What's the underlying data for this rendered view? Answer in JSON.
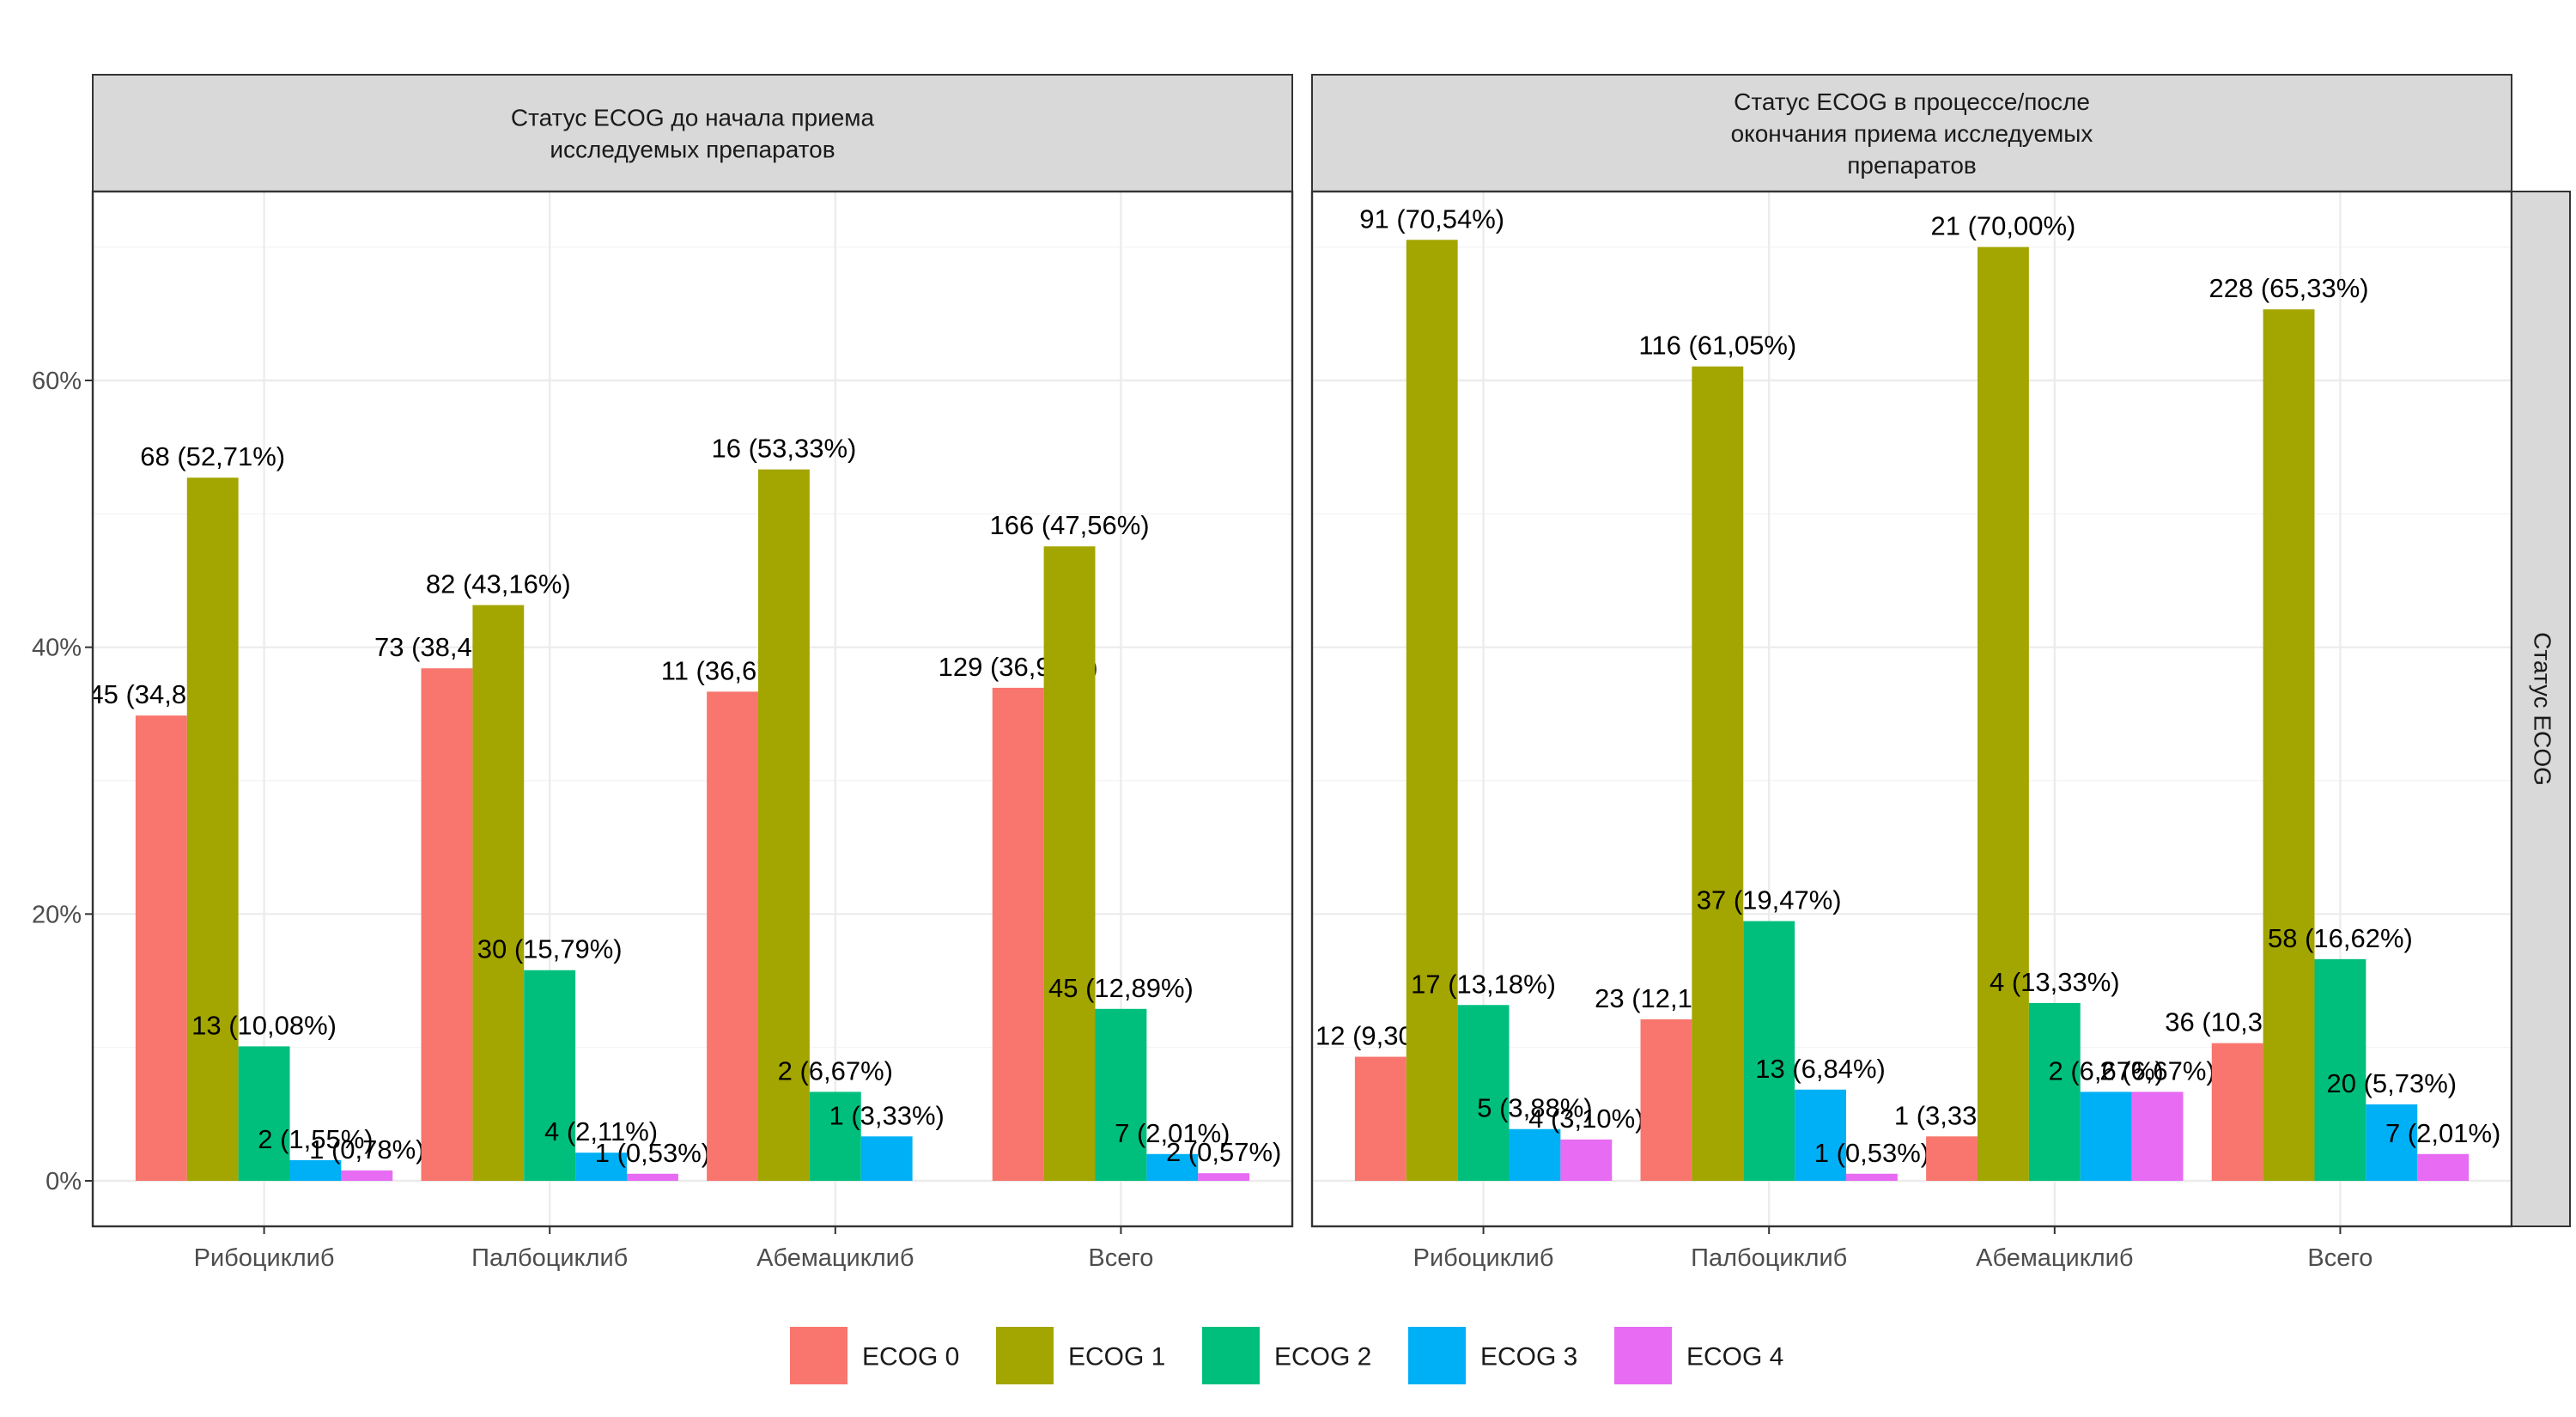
{
  "chart_data": {
    "type": "bar",
    "categories": [
      "Рибоциклиб",
      "Палбоциклиб",
      "Абемациклиб",
      "Всего"
    ],
    "y_ticks": [
      "0%",
      "20%",
      "40%",
      "60%"
    ],
    "ylim": [
      0,
      0.75
    ],
    "grid": true,
    "legend_position": "bottom",
    "row_strip": "Статус ECOG",
    "legend": [
      {
        "name": "ECOG 0",
        "color": "#F8766D"
      },
      {
        "name": "ECOG 1",
        "color": "#A3A500"
      },
      {
        "name": "ECOG 2",
        "color": "#00BF7D"
      },
      {
        "name": "ECOG 3",
        "color": "#00B0F6"
      },
      {
        "name": "ECOG 4",
        "color": "#E76BF3"
      }
    ],
    "panels": [
      {
        "strip": [
          "Статус ECOG до начала приема",
          "исследуемых препаратов"
        ],
        "groups": [
          {
            "category": "Рибоциклиб",
            "bars": [
              {
                "series": "ECOG 0",
                "value": 0.3488,
                "label": "45 (34,88%)"
              },
              {
                "series": "ECOG 1",
                "value": 0.5271,
                "label": "68 (52,71%)"
              },
              {
                "series": "ECOG 2",
                "value": 0.1008,
                "label": "13 (10,08%)"
              },
              {
                "series": "ECOG 3",
                "value": 0.0155,
                "label": "2 (1,55%)"
              },
              {
                "series": "ECOG 4",
                "value": 0.0078,
                "label": "1 (0,78%)"
              }
            ]
          },
          {
            "category": "Палбоциклиб",
            "bars": [
              {
                "series": "ECOG 0",
                "value": 0.3842,
                "label": "73 (38,42%)"
              },
              {
                "series": "ECOG 1",
                "value": 0.4316,
                "label": "82 (43,16%)"
              },
              {
                "series": "ECOG 2",
                "value": 0.1579,
                "label": "30 (15,79%)"
              },
              {
                "series": "ECOG 3",
                "value": 0.0211,
                "label": "4 (2,11%)"
              },
              {
                "series": "ECOG 4",
                "value": 0.0053,
                "label": "1 (0,53%)"
              }
            ]
          },
          {
            "category": "Абемациклиб",
            "bars": [
              {
                "series": "ECOG 0",
                "value": 0.3667,
                "label": "11 (36,67%)"
              },
              {
                "series": "ECOG 1",
                "value": 0.5333,
                "label": "16 (53,33%)"
              },
              {
                "series": "ECOG 2",
                "value": 0.0667,
                "label": "2 (6,67%)"
              },
              {
                "series": "ECOG 3",
                "value": 0.0333,
                "label": "1 (3,33%)"
              }
            ]
          },
          {
            "category": "Всего",
            "bars": [
              {
                "series": "ECOG 0",
                "value": 0.3696,
                "label": "129 (36,96%)"
              },
              {
                "series": "ECOG 1",
                "value": 0.4756,
                "label": "166 (47,56%)"
              },
              {
                "series": "ECOG 2",
                "value": 0.1289,
                "label": "45 (12,89%)"
              },
              {
                "series": "ECOG 3",
                "value": 0.0201,
                "label": "7 (2,01%)"
              },
              {
                "series": "ECOG 4",
                "value": 0.0057,
                "label": "2 (0,57%)"
              }
            ]
          }
        ]
      },
      {
        "strip": [
          "Статус ECOG в процессе/после",
          "окончания приема исследуемых",
          "препаратов"
        ],
        "groups": [
          {
            "category": "Рибоциклиб",
            "bars": [
              {
                "series": "ECOG 0",
                "value": 0.093,
                "label": "12 (9,30%)"
              },
              {
                "series": "ECOG 1",
                "value": 0.7054,
                "label": "91 (70,54%)"
              },
              {
                "series": "ECOG 2",
                "value": 0.1318,
                "label": "17 (13,18%)"
              },
              {
                "series": "ECOG 3",
                "value": 0.0388,
                "label": "5 (3,88%)"
              },
              {
                "series": "ECOG 4",
                "value": 0.031,
                "label": "4 (3,10%)"
              }
            ]
          },
          {
            "category": "Палбоциклиб",
            "bars": [
              {
                "series": "ECOG 0",
                "value": 0.1211,
                "label": "23 (12,11%)"
              },
              {
                "series": "ECOG 1",
                "value": 0.6105,
                "label": "116 (61,05%)"
              },
              {
                "series": "ECOG 2",
                "value": 0.1947,
                "label": "37 (19,47%)"
              },
              {
                "series": "ECOG 3",
                "value": 0.0684,
                "label": "13 (6,84%)"
              },
              {
                "series": "ECOG 4",
                "value": 0.0053,
                "label": "1 (0,53%)"
              }
            ]
          },
          {
            "category": "Абемациклиб",
            "bars": [
              {
                "series": "ECOG 0",
                "value": 0.0333,
                "label": "1 (3,33%)"
              },
              {
                "series": "ECOG 1",
                "value": 0.7,
                "label": "21 (70,00%)"
              },
              {
                "series": "ECOG 2",
                "value": 0.1333,
                "label": "4 (13,33%)"
              },
              {
                "series": "ECOG 3",
                "value": 0.0667,
                "label": "2 (6,67%)"
              },
              {
                "series": "ECOG 4",
                "value": 0.0667,
                "label": "2 (6,67%)"
              }
            ]
          },
          {
            "category": "Всего",
            "bars": [
              {
                "series": "ECOG 0",
                "value": 0.1032,
                "label": "36 (10,32%)"
              },
              {
                "series": "ECOG 1",
                "value": 0.6533,
                "label": "228 (65,33%)"
              },
              {
                "series": "ECOG 2",
                "value": 0.1662,
                "label": "58 (16,62%)"
              },
              {
                "series": "ECOG 3",
                "value": 0.0573,
                "label": "20 (5,73%)"
              },
              {
                "series": "ECOG 4",
                "value": 0.0201,
                "label": "7 (2,01%)"
              }
            ]
          }
        ]
      }
    ]
  }
}
